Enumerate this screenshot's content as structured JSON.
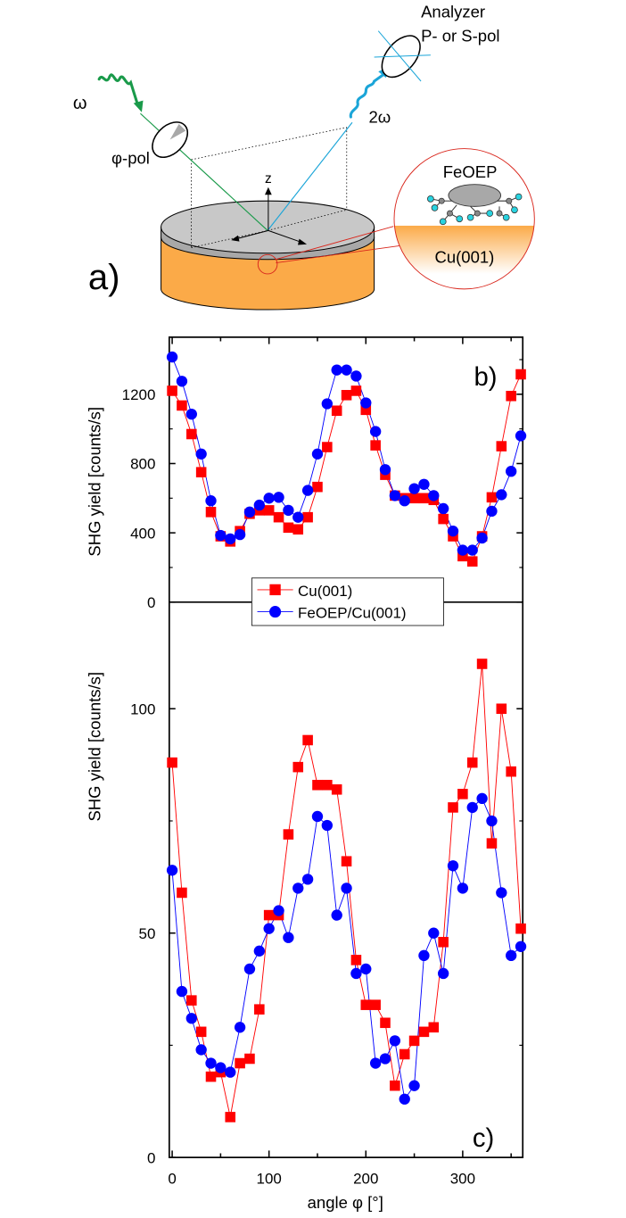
{
  "schematic": {
    "panel_label": "a)",
    "omega_label": "ω",
    "two_omega_label": "2ω",
    "polarizer_label": "φ-pol",
    "analyzer_title": "Analyzer",
    "analyzer_sub": "P- or S-pol",
    "z_axis_label": "z",
    "molecule_label": "FeOEP",
    "substrate_label": "Cu(001)",
    "colors": {
      "incident": "#1a9a4a",
      "outgoing": "#1ba5d8",
      "orange": "#fbaa48",
      "grey": "#a8a8a8",
      "red": "#d9261c"
    }
  },
  "legend": {
    "entries": [
      {
        "label": "Cu(001)",
        "marker": "square",
        "color": "#ff0000"
      },
      {
        "label": "FeOEP/Cu(001)",
        "marker": "circle",
        "color": "#0000ff"
      }
    ]
  },
  "chart_data": [
    {
      "type": "line",
      "panel_label": "b)",
      "xlabel": "angle φ [°]",
      "ylabel": "SHG yield [counts/s]",
      "xlim": [
        -3,
        362
      ],
      "ylim": [
        0,
        1450
      ],
      "xticks": [
        0,
        100,
        200,
        300
      ],
      "yticks": [
        0,
        400,
        800,
        1200
      ],
      "zero_line": "dashed",
      "series": [
        {
          "name": "Cu(001)",
          "color": "#ff0000",
          "marker": "square",
          "x": [
            0,
            10,
            20,
            30,
            40,
            50,
            60,
            70,
            80,
            90,
            100,
            110,
            120,
            130,
            140,
            150,
            160,
            170,
            180,
            190,
            200,
            210,
            220,
            230,
            240,
            250,
            260,
            270,
            280,
            290,
            300,
            310,
            320,
            330,
            340,
            350,
            360
          ],
          "y": [
            1220,
            1135,
            970,
            750,
            520,
            380,
            350,
            410,
            510,
            530,
            530,
            490,
            430,
            420,
            490,
            665,
            895,
            1105,
            1195,
            1220,
            1110,
            905,
            735,
            615,
            600,
            600,
            600,
            590,
            480,
            380,
            265,
            235,
            380,
            605,
            900,
            1190,
            1315
          ]
        },
        {
          "name": "FeOEP/Cu(001)",
          "color": "#0000ff",
          "marker": "circle",
          "x": [
            0,
            10,
            20,
            30,
            40,
            50,
            60,
            70,
            80,
            90,
            100,
            110,
            120,
            130,
            140,
            150,
            160,
            170,
            180,
            190,
            200,
            210,
            220,
            230,
            240,
            250,
            260,
            270,
            280,
            290,
            300,
            310,
            320,
            330,
            340,
            350,
            360
          ],
          "y": [
            1415,
            1275,
            1085,
            855,
            585,
            385,
            365,
            390,
            520,
            560,
            600,
            605,
            530,
            490,
            645,
            855,
            1145,
            1340,
            1340,
            1305,
            1150,
            985,
            765,
            615,
            585,
            655,
            680,
            615,
            540,
            410,
            300,
            300,
            370,
            525,
            620,
            755,
            960
          ]
        }
      ]
    },
    {
      "type": "line",
      "panel_label": "c)",
      "xlabel": "angle φ [°]",
      "ylabel": "SHG yield [counts/s]",
      "xlim": [
        -3,
        362
      ],
      "ylim": [
        0,
        121
      ],
      "xticks": [
        0,
        100,
        200,
        300
      ],
      "yticks": [
        0,
        50,
        100
      ],
      "series": [
        {
          "name": "Cu(001)",
          "color": "#ff0000",
          "marker": "square",
          "x": [
            0,
            10,
            20,
            30,
            40,
            50,
            60,
            70,
            80,
            90,
            100,
            110,
            120,
            130,
            140,
            150,
            160,
            170,
            180,
            190,
            200,
            210,
            220,
            230,
            240,
            250,
            260,
            270,
            280,
            290,
            300,
            310,
            320,
            330,
            340,
            350,
            360
          ],
          "y": [
            88,
            59,
            35,
            28,
            18,
            19,
            9,
            21,
            22,
            33,
            54,
            54,
            72,
            87,
            93,
            83,
            83,
            82,
            66,
            44,
            34,
            34,
            30,
            16,
            23,
            26,
            28,
            29,
            48,
            78,
            81,
            88,
            110,
            70,
            100,
            86,
            51
          ]
        },
        {
          "name": "FeOEP/Cu(001)",
          "color": "#0000ff",
          "marker": "circle",
          "x": [
            0,
            10,
            20,
            30,
            40,
            50,
            60,
            70,
            80,
            90,
            100,
            110,
            120,
            130,
            140,
            150,
            160,
            170,
            180,
            190,
            200,
            210,
            220,
            230,
            240,
            250,
            260,
            270,
            280,
            290,
            300,
            310,
            320,
            330,
            340,
            350,
            360
          ],
          "y": [
            64,
            37,
            31,
            24,
            21,
            20,
            19,
            29,
            42,
            46,
            51,
            55,
            49,
            60,
            62,
            76,
            74,
            54,
            60,
            41,
            42,
            21,
            22,
            26,
            13,
            16,
            45,
            50,
            41,
            65,
            60,
            78,
            80,
            75,
            59,
            45,
            47
          ]
        }
      ]
    }
  ]
}
